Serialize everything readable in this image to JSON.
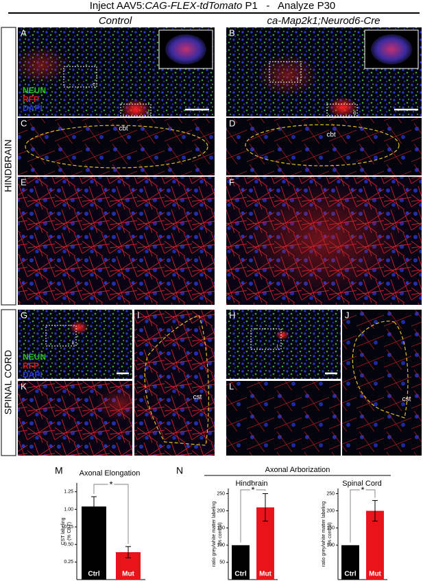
{
  "header": {
    "prefix": "Inject AAV5:",
    "construct": "CAG-FLEX-tdTomato",
    "suffix": " P1   -   Analyze P30"
  },
  "columns": [
    "Control",
    "ca-Map2k1;Neurod6-Cre"
  ],
  "rows": [
    "HINDBRAIN",
    "SPINAL CORD"
  ],
  "stain_legend": [
    {
      "name": "NEUN",
      "color": "#22c522"
    },
    {
      "name": "RFP",
      "color": "#e01818"
    },
    {
      "name": "DAPI",
      "color": "#2a3bd8"
    }
  ],
  "panels": [
    {
      "label": "A",
      "insets": [
        "e",
        "c"
      ]
    },
    {
      "label": "B",
      "insets": [
        "f",
        "d"
      ]
    },
    {
      "label": "C",
      "region": "cbt"
    },
    {
      "label": "D",
      "region": "cbt"
    },
    {
      "label": "E"
    },
    {
      "label": "F"
    },
    {
      "label": "G",
      "insets": [
        "k"
      ]
    },
    {
      "label": "H",
      "insets": [
        "l"
      ]
    },
    {
      "label": "I",
      "region": "cst"
    },
    {
      "label": "J",
      "region": "cst"
    },
    {
      "label": "K"
    },
    {
      "label": "L"
    }
  ],
  "chart_panel_labels": [
    "M",
    "N"
  ],
  "group_title": "Axonal Arborization",
  "chart_data": [
    {
      "type": "bar",
      "title": "Axonal Elongation",
      "ylabel": [
        "CST labeling",
        "(% CBT)"
      ],
      "categories": [
        "Ctrl",
        "Mut"
      ],
      "values": [
        1.04,
        0.39
      ],
      "errors": [
        0.14,
        0.08
      ],
      "colors": [
        "#000000",
        "#e8141a"
      ],
      "ylim": [
        0,
        1.375
      ],
      "yticks": [
        0.25,
        {
          "value": 0.5,
          "label": "0.50"
        },
        0.75,
        {
          "value": 1,
          "label": "1.00"
        },
        1.25
      ],
      "significance": "*"
    },
    {
      "type": "bar",
      "title": "Hindbrain",
      "ylabel": [
        "ratio grey/white matter labeling",
        "(% control)"
      ],
      "categories": [
        "Ctrl",
        "Mut"
      ],
      "values": [
        100,
        210
      ],
      "errors": [
        0,
        40
      ],
      "colors": [
        "#000000",
        "#e8141a"
      ],
      "ylim": [
        0,
        265
      ],
      "yticks": [
        50,
        100,
        150,
        200,
        250
      ],
      "significance": "*"
    },
    {
      "type": "bar",
      "title": "Spinal Cord",
      "ylabel": [
        "ratio grey/white matter labeling",
        "(% control)"
      ],
      "categories": [
        "Ctrl",
        "Mut"
      ],
      "values": [
        100,
        200
      ],
      "errors": [
        0,
        30
      ],
      "colors": [
        "#000000",
        "#e8141a"
      ],
      "ylim": [
        0,
        265
      ],
      "yticks": [
        100,
        150,
        200,
        250
      ],
      "significance": "*"
    }
  ]
}
